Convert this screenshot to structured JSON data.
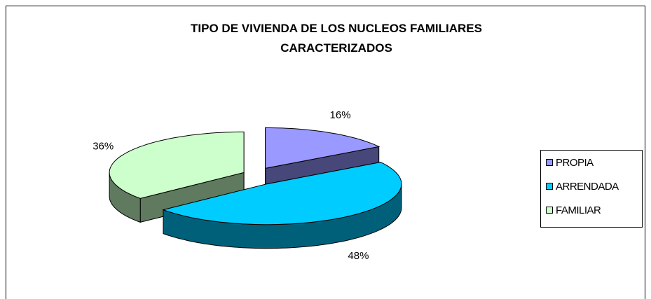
{
  "chart_data": {
    "type": "pie3d",
    "title": "TIPO DE VIVIENDA DE LOS NUCLEOS FAMILIARES CARACTERIZADOS",
    "categories": [
      "PROPIA",
      "ARRENDADA",
      "FAMILIAR"
    ],
    "values": [
      16,
      48,
      36
    ],
    "value_labels": [
      "16%",
      "48%",
      "36%"
    ],
    "colors": [
      "#9999ff",
      "#00ccff",
      "#ccffcc"
    ],
    "side_colors": [
      "#47477a",
      "#00607a",
      "#5f7a5f"
    ],
    "legend": "right"
  }
}
